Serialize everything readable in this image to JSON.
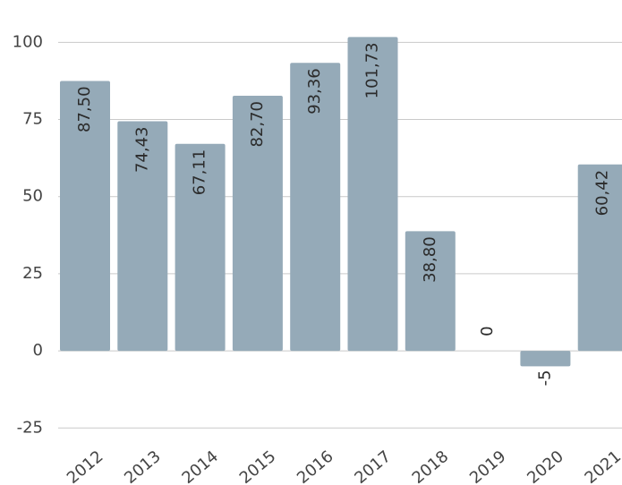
{
  "chart_data": {
    "type": "bar",
    "categories": [
      "2012",
      "2013",
      "2014",
      "2015",
      "2016",
      "2017",
      "2018",
      "2019",
      "2020",
      "2021"
    ],
    "values": [
      87.5,
      74.43,
      67.11,
      82.7,
      93.36,
      101.73,
      38.8,
      0,
      -5,
      60.42
    ],
    "value_labels": [
      "87,50",
      "74,43",
      "67,11",
      "82,70",
      "93,36",
      "101,73",
      "38,80",
      "0",
      "-5",
      "60,42"
    ],
    "color": "#95aab8",
    "ylim": [
      -28,
      112
    ],
    "yticks": [
      -25,
      0,
      25,
      50,
      75,
      100
    ],
    "grid": true
  }
}
